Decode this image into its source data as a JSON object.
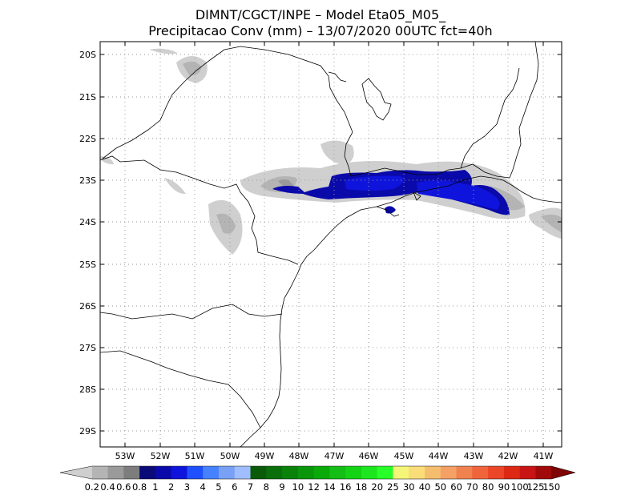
{
  "title": {
    "line1": "DIMNT/CGCT/INPE –  Model Eta05_M05_",
    "line2": "Precipitacao Conv (mm) – 13/07/2020 00UTC fct=40h"
  },
  "axes": {
    "lat_labels": [
      "20S",
      "21S",
      "22S",
      "23S",
      "24S",
      "25S",
      "26S",
      "27S",
      "28S",
      "29S"
    ],
    "lon_labels": [
      "53W",
      "52W",
      "51W",
      "50W",
      "49W",
      "48W",
      "47W",
      "46W",
      "45W",
      "44W",
      "43W",
      "42W",
      "41W"
    ],
    "lat_range": [
      -29.5,
      -19.5
    ],
    "lon_range": [
      -53.8,
      -40.5
    ],
    "grid": "dotted"
  },
  "colorbar": {
    "labels": [
      "0.2",
      "0.4",
      "0.6",
      "0.8",
      "1",
      "2",
      "3",
      "4",
      "5",
      "6",
      "7",
      "8",
      "9",
      "10",
      "12",
      "14",
      "16",
      "18",
      "20",
      "25",
      "30",
      "40",
      "50",
      "60",
      "70",
      "80",
      "90",
      "100",
      "125",
      "150"
    ],
    "colors": [
      "#cfcfcf",
      "#b4b4b4",
      "#9a9a9a",
      "#7d7d7d",
      "#0a0a78",
      "#0a0aaa",
      "#0f14dc",
      "#1e50ff",
      "#4682ff",
      "#78a0f5",
      "#a0beff",
      "#0a5a0a",
      "#0a6e0a",
      "#0a820a",
      "#0a960a",
      "#0aaa0a",
      "#14be14",
      "#14d214",
      "#1ee61e",
      "#28ff28",
      "#f5f578",
      "#fadc78",
      "#f5be6e",
      "#f5a064",
      "#f08250",
      "#f0643c",
      "#eb4628",
      "#dc2814",
      "#c81414",
      "#a00a0a",
      "#7d0505"
    ]
  },
  "precip_colors": {
    "light": "#cfcfcf",
    "mid": "#b4b4b4",
    "dark": "#9a9a9a",
    "band_dark_blue": "#0a0aaa",
    "band_blue": "#0f14dc"
  }
}
